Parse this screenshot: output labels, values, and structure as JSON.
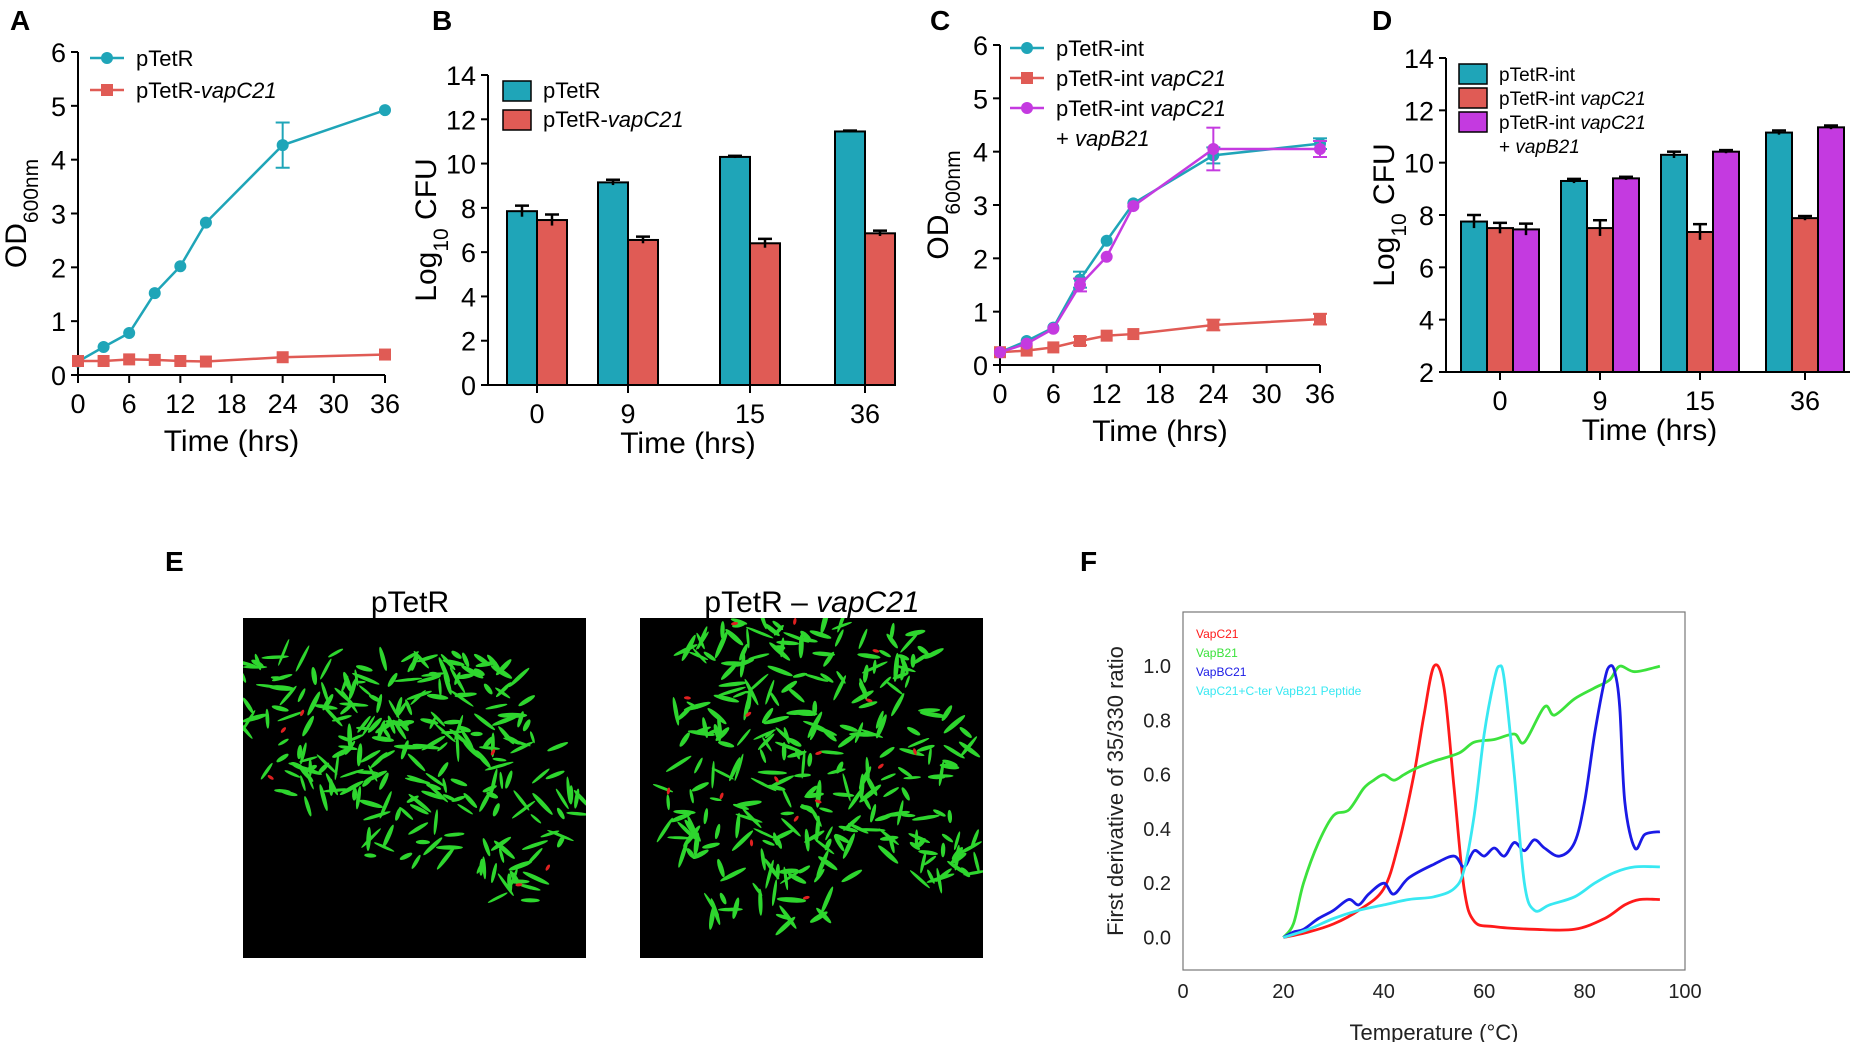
{
  "colors": {
    "teal": "#1FA5B8",
    "coral": "#E05B55",
    "magenta": "#C43AE0",
    "curve_red": "#FF1A1A",
    "curve_green": "#3CE23C",
    "curve_blue": "#1A1AE6",
    "curve_cyan": "#38E8F2",
    "micro_bg": "#000000",
    "cell_green": "#2ED62E",
    "cell_red": "#E02020"
  },
  "panels": {
    "A": "A",
    "B": "B",
    "C": "C",
    "D": "D",
    "E": "E",
    "F": "F"
  },
  "panel_e": {
    "image1_title": "pTetR",
    "image2_title_prefix": "pTetR – ",
    "image2_title_italic": "vapC21"
  },
  "chart_data": [
    {
      "id": "A",
      "type": "line",
      "xlabel": "Time (hrs)",
      "ylabel": "OD",
      "ylabel_sub": "600nm",
      "xlim": [
        0,
        36
      ],
      "ylim": [
        0,
        6
      ],
      "xticks": [
        0,
        6,
        12,
        18,
        24,
        30,
        36
      ],
      "yticks": [
        0,
        1,
        2,
        3,
        4,
        5,
        6
      ],
      "series": [
        {
          "name": "pTetR",
          "name_plain": "pTetR",
          "name_italic": "",
          "marker": "circle",
          "color": "#1FA5B8",
          "x": [
            0,
            3,
            6,
            9,
            12,
            15,
            24,
            36
          ],
          "y": [
            0.25,
            0.52,
            0.78,
            1.52,
            2.02,
            2.83,
            4.27,
            4.92
          ],
          "err": [
            0,
            0,
            0,
            0,
            0,
            0,
            0.42,
            0
          ]
        },
        {
          "name": "pTetR-vapC21",
          "name_plain": "pTetR-",
          "name_italic": "vapC21",
          "marker": "square",
          "color": "#E05B55",
          "x": [
            0,
            3,
            6,
            9,
            12,
            15,
            24,
            36
          ],
          "y": [
            0.26,
            0.26,
            0.29,
            0.28,
            0.26,
            0.25,
            0.33,
            0.38
          ],
          "err": [
            0,
            0,
            0,
            0,
            0,
            0,
            0,
            0
          ]
        }
      ]
    },
    {
      "id": "B",
      "type": "bar",
      "xlabel": "Time (hrs)",
      "ylabel": "Log",
      "ylabel_sub": "10",
      "ylabel_suffix": " CFU",
      "categories": [
        "0",
        "9",
        "15",
        "36"
      ],
      "ylim": [
        0,
        14
      ],
      "yticks": [
        0,
        2,
        4,
        6,
        8,
        10,
        12,
        14
      ],
      "series": [
        {
          "name": "pTetR",
          "name_plain": "pTetR",
          "name_italic": "",
          "color": "#1FA5B8",
          "values": [
            7.85,
            9.15,
            10.3,
            11.45
          ],
          "err": [
            0.25,
            0.12,
            0.05,
            0.04
          ]
        },
        {
          "name": "pTetR-vapC21",
          "name_plain": "pTetR-",
          "name_italic": "vapC21",
          "color": "#E05B55",
          "values": [
            7.45,
            6.55,
            6.4,
            6.85
          ],
          "err": [
            0.25,
            0.15,
            0.2,
            0.12
          ]
        }
      ]
    },
    {
      "id": "C",
      "type": "line",
      "xlabel": "Time (hrs)",
      "ylabel": "OD",
      "ylabel_sub": "600nm",
      "xlim": [
        0,
        36
      ],
      "ylim": [
        0,
        6
      ],
      "xticks": [
        0,
        6,
        12,
        18,
        24,
        30,
        36
      ],
      "yticks": [
        0,
        1,
        2,
        3,
        4,
        5,
        6
      ],
      "series": [
        {
          "name": "pTetR-int",
          "name_plain": "pTetR-int",
          "name_italic": "",
          "name_line2": "",
          "marker": "circle",
          "color": "#1FA5B8",
          "x": [
            0,
            3,
            6,
            9,
            12,
            15,
            24,
            36
          ],
          "y": [
            0.24,
            0.45,
            0.7,
            1.6,
            2.33,
            3.03,
            3.93,
            4.15
          ],
          "err": [
            0,
            0,
            0,
            0.15,
            0,
            0,
            0.15,
            0.1
          ]
        },
        {
          "name": "pTetR-int vapC21",
          "name_plain": "pTetR-int ",
          "name_italic": "vapC21",
          "name_line2": "",
          "marker": "square",
          "color": "#E05B55",
          "x": [
            0,
            3,
            6,
            9,
            12,
            15,
            24,
            36
          ],
          "y": [
            0.24,
            0.27,
            0.33,
            0.45,
            0.55,
            0.58,
            0.75,
            0.86
          ],
          "err": [
            0,
            0,
            0,
            0.08,
            0,
            0,
            0.1,
            0.1
          ]
        },
        {
          "name": "pTetR-int vapC21 + vapB21",
          "name_plain": "pTetR-int ",
          "name_italic": "vapC21",
          "name_line2": "vapB21",
          "marker": "circle",
          "color": "#C43AE0",
          "x": [
            0,
            3,
            6,
            9,
            12,
            15,
            24,
            36
          ],
          "y": [
            0.24,
            0.4,
            0.68,
            1.5,
            2.03,
            2.98,
            4.05,
            4.05
          ],
          "err": [
            0,
            0,
            0,
            0.12,
            0,
            0,
            0.4,
            0.15
          ]
        }
      ]
    },
    {
      "id": "D",
      "type": "bar",
      "xlabel": "Time (hrs)",
      "ylabel": "Log",
      "ylabel_sub": "10",
      "ylabel_suffix": " CFU",
      "categories": [
        "0",
        "9",
        "15",
        "36"
      ],
      "ylim": [
        2,
        14
      ],
      "yticks": [
        2,
        4,
        6,
        8,
        10,
        12,
        14
      ],
      "series": [
        {
          "name": "pTetR-int",
          "name_plain": "pTetR-int",
          "name_italic": "",
          "name_line2": "",
          "color": "#1FA5B8",
          "values": [
            7.75,
            9.3,
            10.3,
            11.15
          ],
          "err": [
            0.25,
            0.08,
            0.12,
            0.08
          ]
        },
        {
          "name": "pTetR-int vapC21",
          "name_plain": "pTetR-int ",
          "name_italic": "vapC21",
          "name_line2": "",
          "color": "#E05B55",
          "values": [
            7.5,
            7.5,
            7.35,
            7.88
          ],
          "err": [
            0.2,
            0.3,
            0.3,
            0.08
          ]
        },
        {
          "name": "pTetR-int vapC21 + vapB21",
          "name_plain": "pTetR-int ",
          "name_italic": "vapC21",
          "name_line2": "vapB21",
          "color": "#C43AE0",
          "values": [
            7.45,
            9.4,
            10.42,
            11.35
          ],
          "err": [
            0.22,
            0.06,
            0.06,
            0.07
          ]
        }
      ]
    },
    {
      "id": "F",
      "type": "line",
      "xlabel": "Temperature (°C)",
      "ylabel": "First derivative of 35/330 ratio",
      "xlim": [
        0,
        100
      ],
      "ylim": [
        -0.12,
        1.2
      ],
      "xticks": [
        0,
        20,
        40,
        60,
        80,
        100
      ],
      "yticks": [
        0.0,
        0.2,
        0.4,
        0.6,
        0.8,
        1.0
      ],
      "ytick_labels": [
        "0.0",
        "0.2",
        "0.4",
        "0.6",
        "0.8",
        "1.0"
      ],
      "series": [
        {
          "name": "VapC21",
          "color": "#FF1A1A",
          "x": [
            20,
            25,
            30,
            35,
            40,
            43,
            46,
            48,
            50,
            52,
            54,
            56,
            58,
            62,
            70,
            78,
            84,
            88,
            91,
            95
          ],
          "y": [
            0.0,
            0.02,
            0.05,
            0.1,
            0.18,
            0.35,
            0.6,
            0.82,
            1.0,
            0.92,
            0.55,
            0.18,
            0.06,
            0.04,
            0.03,
            0.03,
            0.07,
            0.12,
            0.14,
            0.14
          ]
        },
        {
          "name": "VapB21",
          "color": "#3CE23C",
          "x": [
            20,
            22,
            24,
            27,
            30,
            33,
            36,
            38,
            40,
            42,
            44,
            46,
            50,
            55,
            58,
            62,
            66,
            68,
            72,
            74,
            78,
            82,
            85,
            87,
            90,
            95
          ],
          "y": [
            0.0,
            0.05,
            0.2,
            0.35,
            0.45,
            0.47,
            0.55,
            0.58,
            0.6,
            0.58,
            0.6,
            0.62,
            0.65,
            0.68,
            0.72,
            0.73,
            0.75,
            0.72,
            0.85,
            0.82,
            0.88,
            0.92,
            0.95,
            1.0,
            0.98,
            1.0
          ]
        },
        {
          "name": "VapBC21",
          "color": "#1A1AE6",
          "x": [
            20,
            22,
            24,
            27,
            30,
            33,
            35,
            37,
            40,
            42,
            45,
            50,
            54,
            56,
            58,
            60,
            62,
            64,
            66,
            68,
            70,
            72,
            75,
            78,
            80,
            82,
            84,
            85,
            86,
            87,
            88,
            90,
            92,
            95
          ],
          "y": [
            0.0,
            0.02,
            0.03,
            0.07,
            0.1,
            0.14,
            0.12,
            0.16,
            0.2,
            0.16,
            0.22,
            0.27,
            0.3,
            0.26,
            0.32,
            0.3,
            0.33,
            0.3,
            0.35,
            0.32,
            0.36,
            0.33,
            0.3,
            0.35,
            0.5,
            0.75,
            0.95,
            1.0,
            0.98,
            0.85,
            0.5,
            0.33,
            0.38,
            0.39
          ]
        },
        {
          "name": "VapC21+C-ter VapB21 Peptide",
          "color": "#38E8F2",
          "x": [
            20,
            25,
            30,
            35,
            40,
            45,
            50,
            54,
            56,
            58,
            60,
            62,
            63,
            64,
            66,
            68,
            70,
            73,
            78,
            82,
            86,
            90,
            95
          ],
          "y": [
            0.0,
            0.03,
            0.07,
            0.1,
            0.12,
            0.14,
            0.15,
            0.18,
            0.25,
            0.45,
            0.75,
            0.95,
            1.0,
            0.95,
            0.6,
            0.2,
            0.1,
            0.12,
            0.15,
            0.2,
            0.24,
            0.26,
            0.26
          ]
        }
      ]
    }
  ]
}
